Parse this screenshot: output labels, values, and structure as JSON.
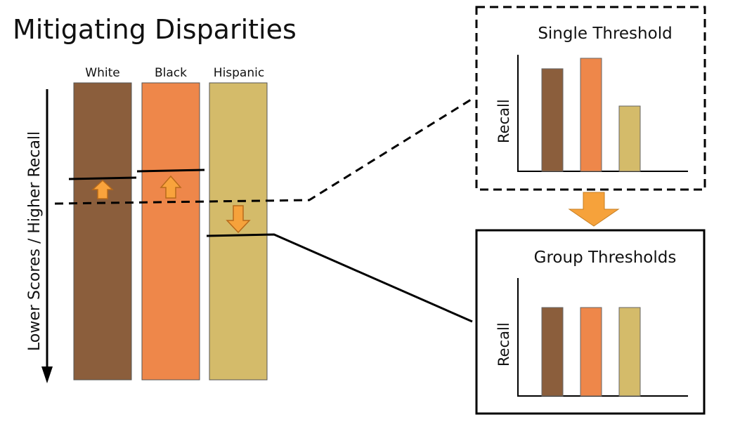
{
  "title": "Mitigating Disparities",
  "axis_label": "Lower Scores / Higher Recall",
  "groups": [
    {
      "name": "White",
      "color": "#8B5E3C"
    },
    {
      "name": "Black",
      "color": "#EE874A"
    },
    {
      "name": "Hispanic",
      "color": "#D4BB6A"
    }
  ],
  "single_panel": {
    "title": "Single Threshold",
    "ylabel": "Recall"
  },
  "group_panel": {
    "title": "Group Thresholds",
    "ylabel": "Recall"
  },
  "chart_data": [
    {
      "type": "bar",
      "title": "Single Threshold",
      "ylabel": "Recall",
      "categories": [
        "White",
        "Black",
        "Hispanic"
      ],
      "values": [
        0.88,
        0.97,
        0.56
      ],
      "colors": [
        "#8B5E3C",
        "#EE874A",
        "#D4BB6A"
      ]
    },
    {
      "type": "bar",
      "title": "Group Thresholds",
      "ylabel": "Recall",
      "categories": [
        "White",
        "Black",
        "Hispanic"
      ],
      "values": [
        0.75,
        0.75,
        0.75
      ],
      "colors": [
        "#8B5E3C",
        "#EE874A",
        "#D4BB6A"
      ]
    }
  ],
  "colors": {
    "arrow_fill": "#F9A33C",
    "arrow_stroke": "#B86A1A",
    "down_arrow_fill": "#F6A23B",
    "line": "#000000"
  }
}
